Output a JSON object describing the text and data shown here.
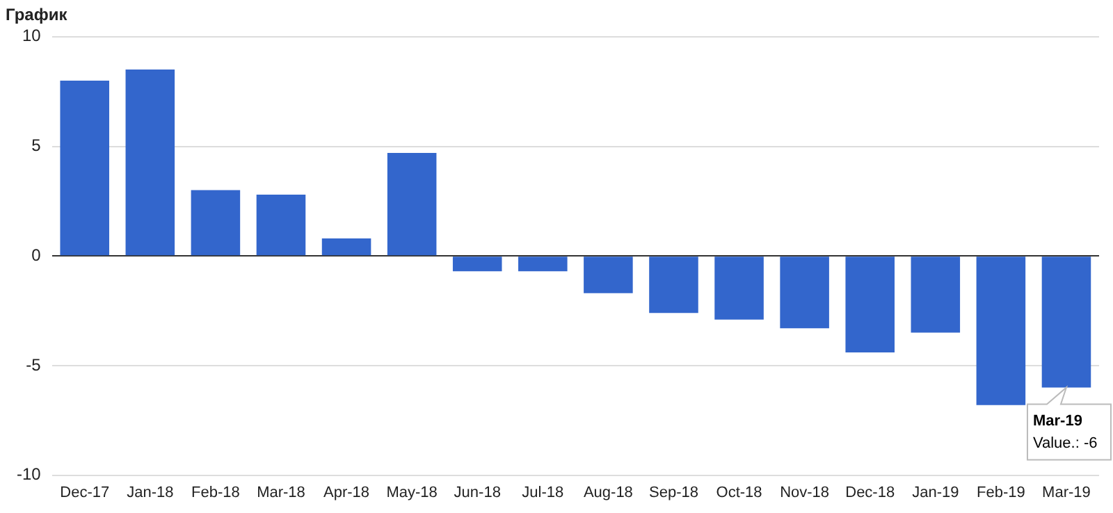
{
  "chart_data": {
    "type": "bar",
    "title": "График",
    "categories": [
      "Dec-17",
      "Jan-18",
      "Feb-18",
      "Mar-18",
      "Apr-18",
      "May-18",
      "Jun-18",
      "Jul-18",
      "Aug-18",
      "Sep-18",
      "Oct-18",
      "Nov-18",
      "Dec-18",
      "Jan-19",
      "Feb-19",
      "Mar-19"
    ],
    "values": [
      8,
      8.5,
      3,
      2.8,
      0.8,
      4.7,
      -0.7,
      -0.7,
      -1.7,
      -2.6,
      -2.9,
      -3.3,
      -4.4,
      -3.5,
      -6.8,
      -6
    ],
    "color": "#3366cc",
    "ylim": [
      -10,
      10
    ],
    "yticks": [
      -10,
      -5,
      0,
      5,
      10
    ],
    "grid": "y",
    "legend": false,
    "annotations": [
      {
        "text": "Mar-19\nValue.: -6",
        "x": "Mar-19",
        "y": -6
      }
    ]
  }
}
